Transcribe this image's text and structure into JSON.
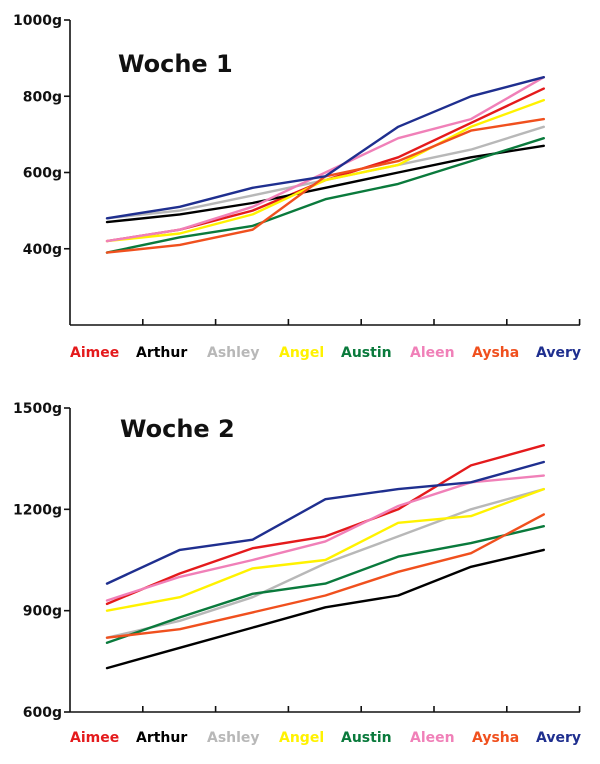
{
  "chart_data": [
    {
      "type": "line",
      "title": "Woche 1",
      "xlabel": "",
      "ylabel": "",
      "x": [
        1,
        2,
        3,
        4,
        5,
        6,
        7
      ],
      "ylim": [
        200,
        1000
      ],
      "yticks": [
        "1000g",
        "800g",
        "600g",
        "400g"
      ],
      "ytick_values": [
        1000,
        800,
        600,
        400
      ],
      "grid": false,
      "legend_position": "bottom",
      "series": [
        {
          "name": "Aimee",
          "color": "#e41a1c",
          "values": [
            420,
            450,
            500,
            580,
            640,
            730,
            820
          ]
        },
        {
          "name": "Arthur",
          "color": "#000000",
          "values": [
            470,
            490,
            520,
            560,
            600,
            640,
            670
          ]
        },
        {
          "name": "Ashley",
          "color": "#b8b8b8",
          "values": [
            480,
            500,
            540,
            580,
            620,
            660,
            720
          ]
        },
        {
          "name": "Angel",
          "color": "#fff200",
          "values": [
            420,
            440,
            490,
            580,
            620,
            720,
            790
          ]
        },
        {
          "name": "Austin",
          "color": "#0a7a3c",
          "values": [
            390,
            430,
            460,
            530,
            570,
            630,
            690
          ]
        },
        {
          "name": "Aleen",
          "color": "#f080b8",
          "values": [
            420,
            450,
            510,
            600,
            690,
            740,
            850
          ]
        },
        {
          "name": "Aysha",
          "color": "#f0501e",
          "values": [
            390,
            410,
            450,
            590,
            630,
            710,
            740
          ]
        },
        {
          "name": "Avery",
          "color": "#1f2f8f",
          "values": [
            480,
            510,
            560,
            590,
            720,
            800,
            850
          ]
        }
      ]
    },
    {
      "type": "line",
      "title": "Woche 2",
      "xlabel": "",
      "ylabel": "",
      "x": [
        1,
        2,
        3,
        4,
        5,
        6,
        7
      ],
      "ylim": [
        600,
        1500
      ],
      "yticks": [
        "1500g",
        "1200g",
        "900g",
        "600g"
      ],
      "ytick_values": [
        1500,
        1200,
        900,
        600
      ],
      "grid": false,
      "legend_position": "bottom",
      "series": [
        {
          "name": "Aimee",
          "color": "#e41a1c",
          "values": [
            920,
            1010,
            1085,
            1120,
            1200,
            1330,
            1390
          ]
        },
        {
          "name": "Arthur",
          "color": "#000000",
          "values": [
            730,
            790,
            850,
            910,
            945,
            1030,
            1080
          ]
        },
        {
          "name": "Ashley",
          "color": "#b8b8b8",
          "values": [
            820,
            870,
            940,
            1040,
            1120,
            1200,
            1260
          ]
        },
        {
          "name": "Angel",
          "color": "#fff200",
          "values": [
            900,
            940,
            1025,
            1050,
            1160,
            1180,
            1260
          ]
        },
        {
          "name": "Austin",
          "color": "#0a7a3c",
          "values": [
            805,
            880,
            950,
            980,
            1060,
            1100,
            1150
          ]
        },
        {
          "name": "Aleen",
          "color": "#f080b8",
          "values": [
            930,
            1000,
            1050,
            1105,
            1210,
            1280,
            1300
          ]
        },
        {
          "name": "Aysha",
          "color": "#f0501e",
          "values": [
            820,
            845,
            895,
            945,
            1015,
            1070,
            1185
          ]
        },
        {
          "name": "Avery",
          "color": "#1f2f8f",
          "values": [
            980,
            1080,
            1110,
            1230,
            1260,
            1280,
            1340
          ]
        }
      ]
    }
  ]
}
